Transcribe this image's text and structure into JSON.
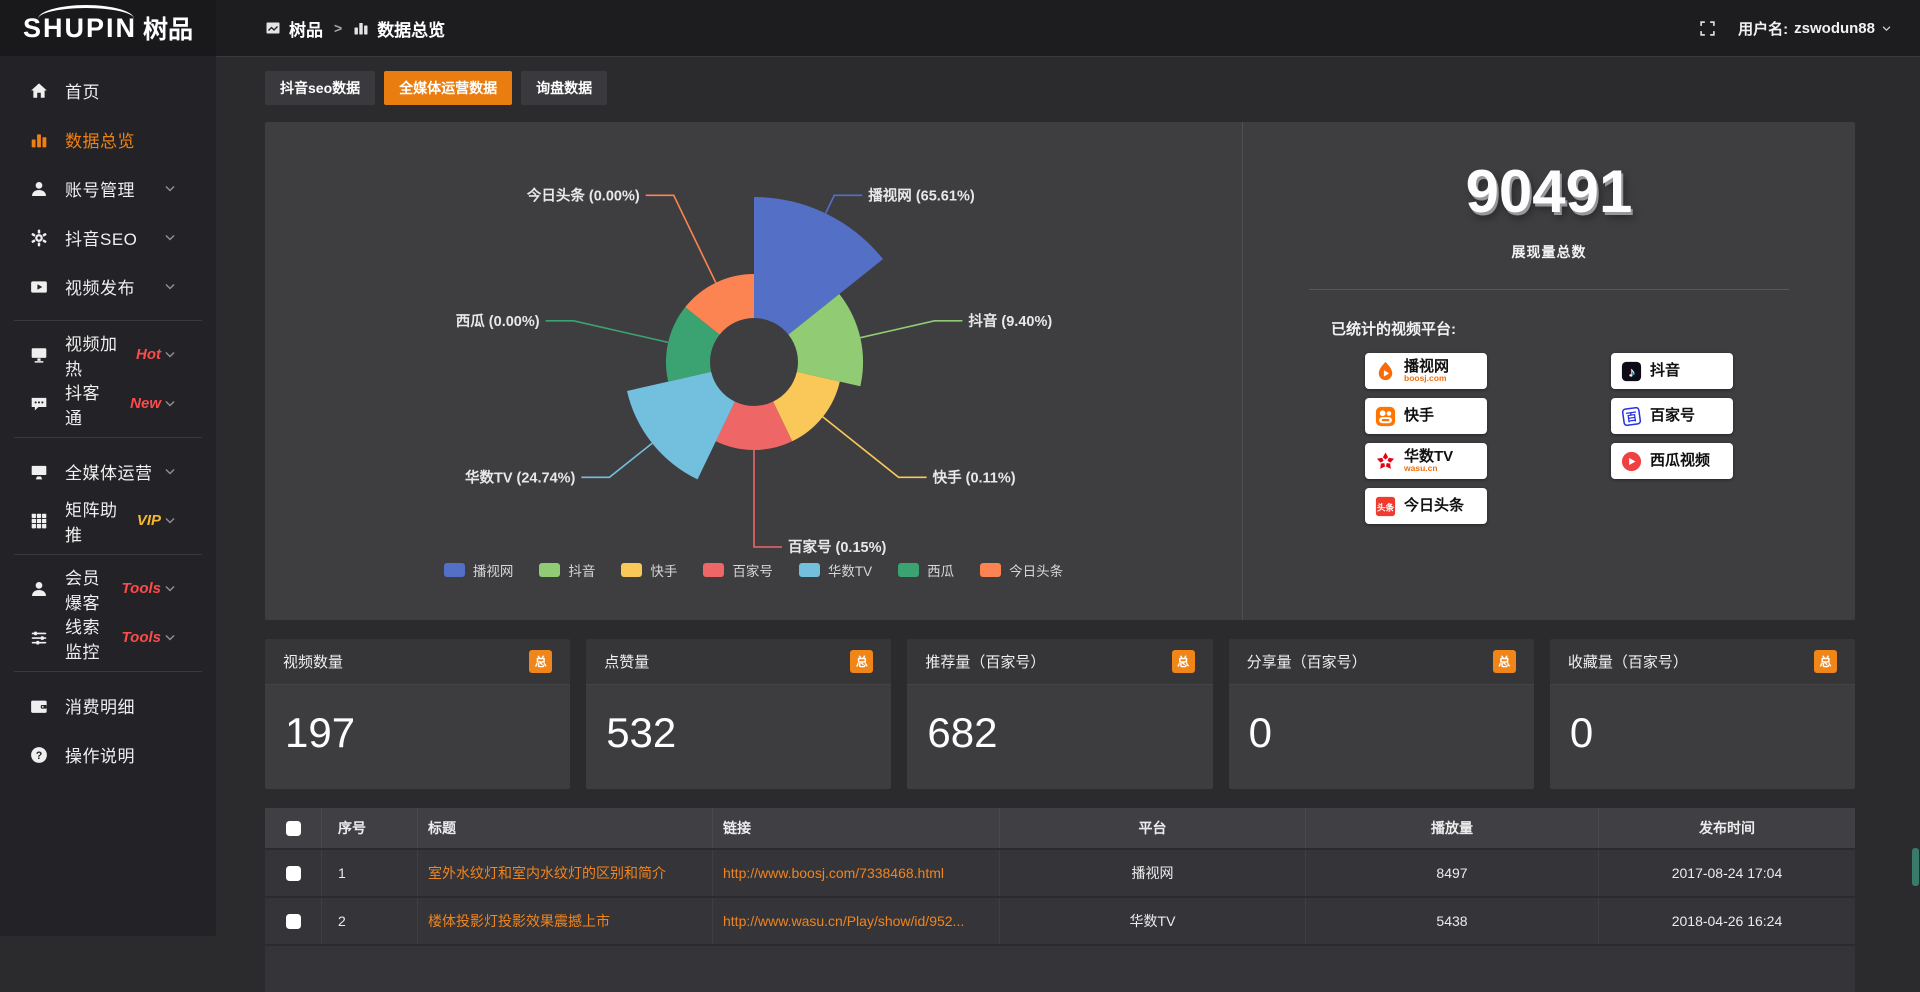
{
  "logo": {
    "text_en": "SHUPIN",
    "text_cn": "树品"
  },
  "topbar": {
    "breadcrumb": [
      {
        "label": "树品"
      },
      {
        "label": "数据总览"
      }
    ],
    "separator": ">",
    "username_label": "用户名:",
    "username": "zswodun88"
  },
  "sidebar": {
    "items": [
      {
        "label": "首页",
        "icon": "home-icon",
        "active": false,
        "chevron": false
      },
      {
        "label": "数据总览",
        "icon": "bar-chart-icon",
        "active": true,
        "chevron": false
      },
      {
        "label": "账号管理",
        "icon": "user-icon",
        "chevron": true
      },
      {
        "label": "抖音SEO",
        "icon": "gear-icon",
        "chevron": true
      },
      {
        "label": "视频发布",
        "icon": "video-icon",
        "chevron": true
      },
      {
        "divider": true
      },
      {
        "label": "视频加热",
        "tag": "Hot",
        "tag_color": "#fb4b4b",
        "icon": "monitor-icon",
        "chevron": true
      },
      {
        "label": "抖客通",
        "tag": "New",
        "tag_color": "#fb4b4b",
        "icon": "chat-icon",
        "chevron": true
      },
      {
        "divider": true
      },
      {
        "label": "全媒体运营",
        "icon": "screen-icon",
        "chevron": true
      },
      {
        "label": "矩阵助推",
        "tag": "VIP",
        "tag_color": "#f7b731",
        "icon": "grid-icon",
        "chevron": true
      },
      {
        "divider": true
      },
      {
        "label": "会员爆客",
        "tag": "Tools",
        "tag_color": "#fb4b4b",
        "icon": "member-icon",
        "chevron": true
      },
      {
        "label": "线索监控",
        "tag": "Tools",
        "tag_color": "#fb4b4b",
        "icon": "sliders-icon",
        "chevron": true
      },
      {
        "divider": true
      },
      {
        "label": "消费明细",
        "icon": "wallet-icon",
        "chevron": false
      },
      {
        "label": "操作说明",
        "icon": "question-icon",
        "chevron": false
      }
    ]
  },
  "tabs": [
    {
      "label": "抖音seo数据",
      "active": false
    },
    {
      "label": "全媒体运营数据",
      "active": true
    },
    {
      "label": "询盘数据",
      "active": false
    }
  ],
  "chart_data": {
    "type": "pie",
    "subtype": "nightingale-rose",
    "categories": [
      "播视网",
      "抖音",
      "快手",
      "百家号",
      "华数TV",
      "西瓜",
      "今日头条"
    ],
    "values_percent": [
      65.61,
      9.4,
      0.11,
      0.15,
      24.74,
      0.0,
      0.0
    ],
    "labels": [
      "播视网 (65.61%)",
      "抖音 (9.40%)",
      "快手 (0.11%)",
      "百家号 (0.15%)",
      "华数TV (24.74%)",
      "西瓜 (0.00%)",
      "今日头条 (0.00%)"
    ],
    "colors": [
      "#5470c6",
      "#91cc75",
      "#fac858",
      "#ee6666",
      "#73c0de",
      "#3ba272",
      "#fc8452"
    ],
    "legend": [
      "播视网",
      "抖音",
      "快手",
      "百家号",
      "华数TV",
      "西瓜",
      "今日头条"
    ],
    "legend_position": "bottom"
  },
  "summary": {
    "total_value": "90491",
    "total_label": "展现量总数",
    "platforms_label": "已统计的视频平台:",
    "platforms_left": [
      {
        "name": "播视网",
        "caption": "boosj.com",
        "icon": "boosj-logo-icon"
      },
      {
        "name": "快手",
        "caption": "",
        "icon": "kuaishou-logo-icon"
      },
      {
        "name": "华数TV",
        "caption": "wasu.cn",
        "icon": "wasu-logo-icon"
      },
      {
        "name": "今日头条",
        "caption": "",
        "icon": "toutiao-logo-icon"
      }
    ],
    "platforms_right": [
      {
        "name": "抖音",
        "caption": "",
        "icon": "douyin-logo-icon"
      },
      {
        "name": "百家号",
        "caption": "",
        "icon": "baijiahao-logo-icon"
      },
      {
        "name": "西瓜视频",
        "caption": "",
        "icon": "xigua-logo-icon"
      }
    ]
  },
  "stat_cards": [
    {
      "title": "视频数量",
      "badge": "总",
      "value": "197"
    },
    {
      "title": "点赞量",
      "badge": "总",
      "value": "532"
    },
    {
      "title": "推荐量（百家号）",
      "badge": "总",
      "value": "682"
    },
    {
      "title": "分享量（百家号）",
      "badge": "总",
      "value": "0"
    },
    {
      "title": "收藏量（百家号）",
      "badge": "总",
      "value": "0"
    }
  ],
  "table": {
    "headers": [
      "序号",
      "标题",
      "链接",
      "平台",
      "播放量",
      "发布时间"
    ],
    "rows": [
      {
        "index": "1",
        "title": "室外水纹灯和室内水纹灯的区别和简介",
        "link": "http://www.boosj.com/7338468.html",
        "platform": "播视网",
        "plays": "8497",
        "time": "2017-08-24 17:04"
      },
      {
        "index": "2",
        "title": "楼体投影灯投影效果震撼上市",
        "link": "http://www.wasu.cn/Play/show/id/952...",
        "platform": "华数TV",
        "plays": "5438",
        "time": "2018-04-26 16:24"
      }
    ]
  },
  "colors": {
    "accent_orange": "#e97d10",
    "badge_orange": "#f08519",
    "link_orange": "#ef8420",
    "tag_red": "#fb4b4b",
    "tag_yellow": "#f7b731"
  }
}
